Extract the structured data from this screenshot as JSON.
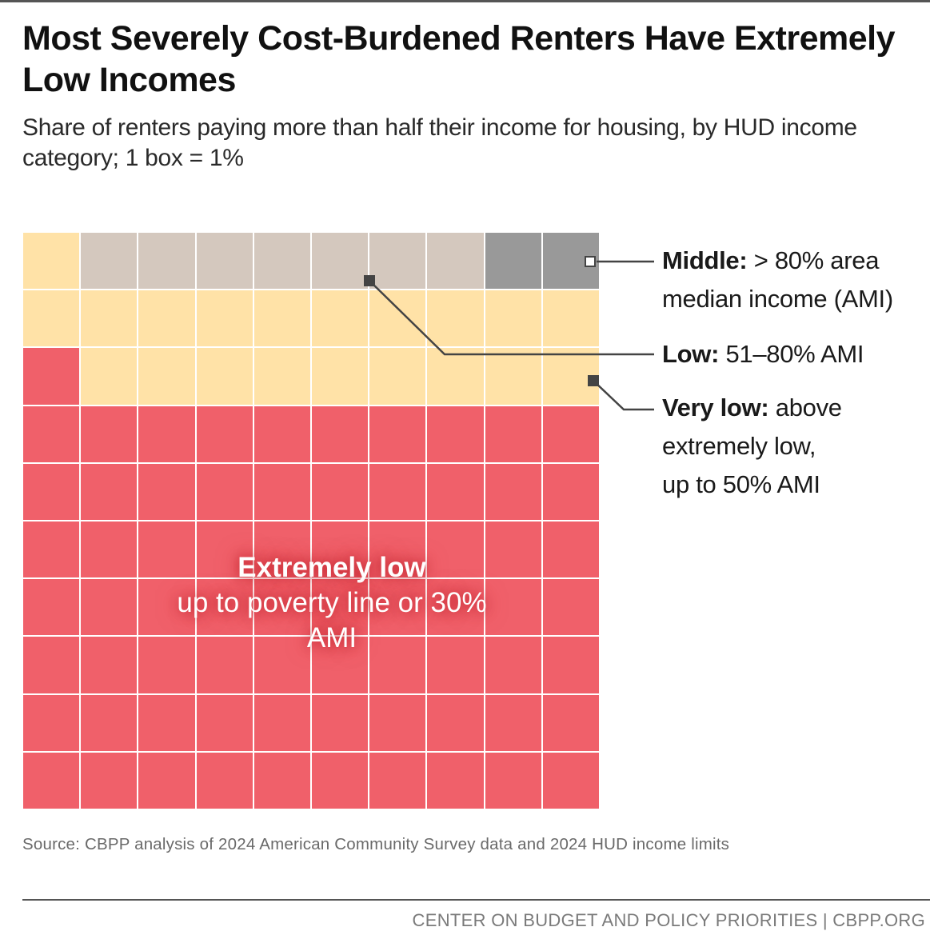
{
  "title": "Most Severely Cost-Burdened Renters Have Extremely Low Incomes",
  "subtitle": "Share of renters paying more than half their income for housing, by HUD income category; 1 box = 1%",
  "chart_data": {
    "type": "waffle",
    "grid": {
      "rows": 10,
      "cols": 10,
      "unit": "1 box = 1%"
    },
    "fill_order": "bottom-to-top, left-to-right",
    "series": [
      {
        "key": "extremely_low",
        "value": 71,
        "color": "#f0606a"
      },
      {
        "key": "very_low",
        "value": 20,
        "color": "#ffe2a7"
      },
      {
        "key": "low",
        "value": 7,
        "color": "#d4c8be"
      },
      {
        "key": "middle",
        "value": 2,
        "color": "#999999"
      }
    ],
    "inner_label": {
      "name": "Extremely low",
      "description": "up to poverty line or 30% AMI"
    },
    "legend": [
      {
        "key": "middle",
        "name": "Middle:",
        "description_line1": "> 80% area",
        "description_line2": "median income (AMI)"
      },
      {
        "key": "low",
        "name": "Low:",
        "description_line1": "51–80% AMI"
      },
      {
        "key": "very_low",
        "name": "Very low:",
        "description_line1": "above",
        "description_line2": "extremely low,",
        "description_line3": "up to 50% AMI"
      }
    ],
    "leader_color": "#444444"
  },
  "source": "Source: CBPP analysis of 2024 American Community Survey data and 2024 HUD income limits",
  "footer": "CENTER ON BUDGET AND POLICY PRIORITIES | CBPP.ORG"
}
